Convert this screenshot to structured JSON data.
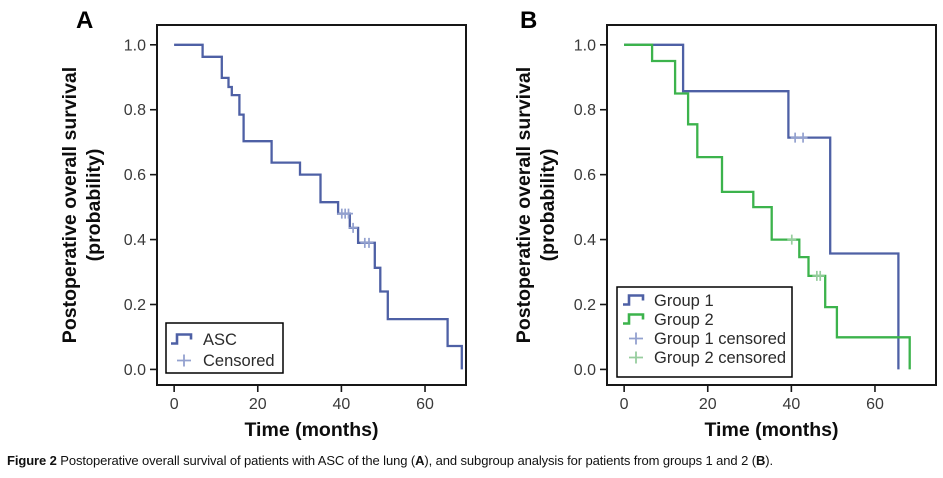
{
  "figure_title": "Figure 2",
  "caption": {
    "segments": [
      {
        "text": "Figure 2",
        "bold": true
      },
      {
        "text": " Postoperative overall survival of patients with ASC of the lung (",
        "bold": false
      },
      {
        "text": "A",
        "bold": true
      },
      {
        "text": "), and subgroup analysis for patients from groups 1 and 2 (",
        "bold": false
      },
      {
        "text": "B",
        "bold": true
      },
      {
        "text": ").",
        "bold": false
      }
    ]
  },
  "colors": {
    "group1_blue": "#4e60a5",
    "group2_green": "#3cb34c",
    "censored_blue": "#93a1cf",
    "censored_green": "#97cd9e",
    "frame": "#171717",
    "tick_label": "#3a3a3a",
    "axis_title": "#0d0d0d",
    "legend_text": "#2b2b2b",
    "legend_border": "#000000"
  },
  "chart_data": [
    {
      "type": "line",
      "subtype": "kaplan-meier-step",
      "panel_label": "A",
      "xlabel": "Time (months)",
      "ylabel_lines": [
        "Postoperative overall survival",
        "(probability)"
      ],
      "xticks": [
        0,
        20,
        40,
        60
      ],
      "xtick_labels": [
        "0",
        "20",
        "40",
        "60"
      ],
      "yticks": [
        0.0,
        0.2,
        0.4,
        0.6,
        0.8,
        1.0
      ],
      "ytick_labels": [
        "0.0",
        "0.2",
        "0.4",
        "0.6",
        "0.8",
        "1.0"
      ],
      "xlim": [
        -4.1,
        69.8
      ],
      "ylim": [
        -0.048,
        1.061
      ],
      "grid": false,
      "series": [
        {
          "name": "ASC",
          "color_key": "group1_blue",
          "censor_color_key": "censored_blue",
          "steps": [
            [
              0,
              1.0
            ],
            [
              6.8,
              0.963
            ],
            [
              11.4,
              0.898
            ],
            [
              13.0,
              0.87
            ],
            [
              13.8,
              0.845
            ],
            [
              15.6,
              0.785
            ],
            [
              16.6,
              0.703
            ],
            [
              23.3,
              0.637
            ],
            [
              30.1,
              0.6
            ],
            [
              35.0,
              0.515
            ],
            [
              39.2,
              0.48
            ],
            [
              42.0,
              0.436
            ],
            [
              44.0,
              0.39
            ],
            [
              48.0,
              0.313
            ],
            [
              49.3,
              0.24
            ],
            [
              51.1,
              0.155
            ],
            [
              65.4,
              0.072
            ],
            [
              68.8,
              0.0
            ]
          ],
          "censored": [
            [
              40.1,
              0.48
            ],
            [
              40.9,
              0.48
            ],
            [
              41.7,
              0.48
            ],
            [
              42.8,
              0.436
            ],
            [
              45.6,
              0.39
            ],
            [
              46.6,
              0.39
            ]
          ]
        }
      ],
      "legend": {
        "position": "lower-left",
        "entries": [
          {
            "label": "ASC",
            "glyph": "step",
            "color_key": "group1_blue"
          },
          {
            "label": "Censored",
            "glyph": "plus",
            "color_key": "censored_blue"
          }
        ]
      }
    },
    {
      "type": "line",
      "subtype": "kaplan-meier-step",
      "panel_label": "B",
      "xlabel": "Time (months)",
      "ylabel_lines": [
        "Postoperative overall survival",
        "(probability)"
      ],
      "xticks": [
        0,
        20,
        40,
        60
      ],
      "xtick_labels": [
        "0",
        "20",
        "40",
        "60"
      ],
      "yticks": [
        0.0,
        0.2,
        0.4,
        0.6,
        0.8,
        1.0
      ],
      "ytick_labels": [
        "0.0",
        "0.2",
        "0.4",
        "0.6",
        "0.8",
        "1.0"
      ],
      "xlim": [
        -4.1,
        74.6
      ],
      "ylim": [
        -0.048,
        1.061
      ],
      "grid": false,
      "series": [
        {
          "name": "Group 1",
          "color_key": "group1_blue",
          "censor_color_key": "censored_blue",
          "steps": [
            [
              0,
              1.0
            ],
            [
              14.1,
              0.857
            ],
            [
              39.3,
              0.714
            ],
            [
              49.3,
              0.357
            ],
            [
              65.6,
              0.0
            ]
          ],
          "censored": [
            [
              40.9,
              0.714
            ],
            [
              42.8,
              0.714
            ]
          ]
        },
        {
          "name": "Group 2",
          "color_key": "group2_green",
          "censor_color_key": "censored_green",
          "steps": [
            [
              0,
              1.0
            ],
            [
              6.7,
              0.95
            ],
            [
              12.2,
              0.85
            ],
            [
              15.3,
              0.755
            ],
            [
              17.5,
              0.654
            ],
            [
              23.4,
              0.547
            ],
            [
              30.9,
              0.5
            ],
            [
              35.3,
              0.4
            ],
            [
              41.9,
              0.346
            ],
            [
              44.1,
              0.288
            ],
            [
              48.1,
              0.192
            ],
            [
              50.9,
              0.099
            ],
            [
              68.3,
              0.0
            ]
          ],
          "censored": [
            [
              40.1,
              0.4
            ],
            [
              46.1,
              0.288
            ],
            [
              46.9,
              0.288
            ]
          ]
        }
      ],
      "legend": {
        "position": "lower-left",
        "entries": [
          {
            "label": "Group 1",
            "glyph": "step",
            "color_key": "group1_blue"
          },
          {
            "label": "Group 2",
            "glyph": "step",
            "color_key": "group2_green"
          },
          {
            "label": "Group 1 censored",
            "glyph": "plus",
            "color_key": "censored_blue"
          },
          {
            "label": "Group 2 censored",
            "glyph": "plus",
            "color_key": "censored_green"
          }
        ]
      }
    }
  ]
}
